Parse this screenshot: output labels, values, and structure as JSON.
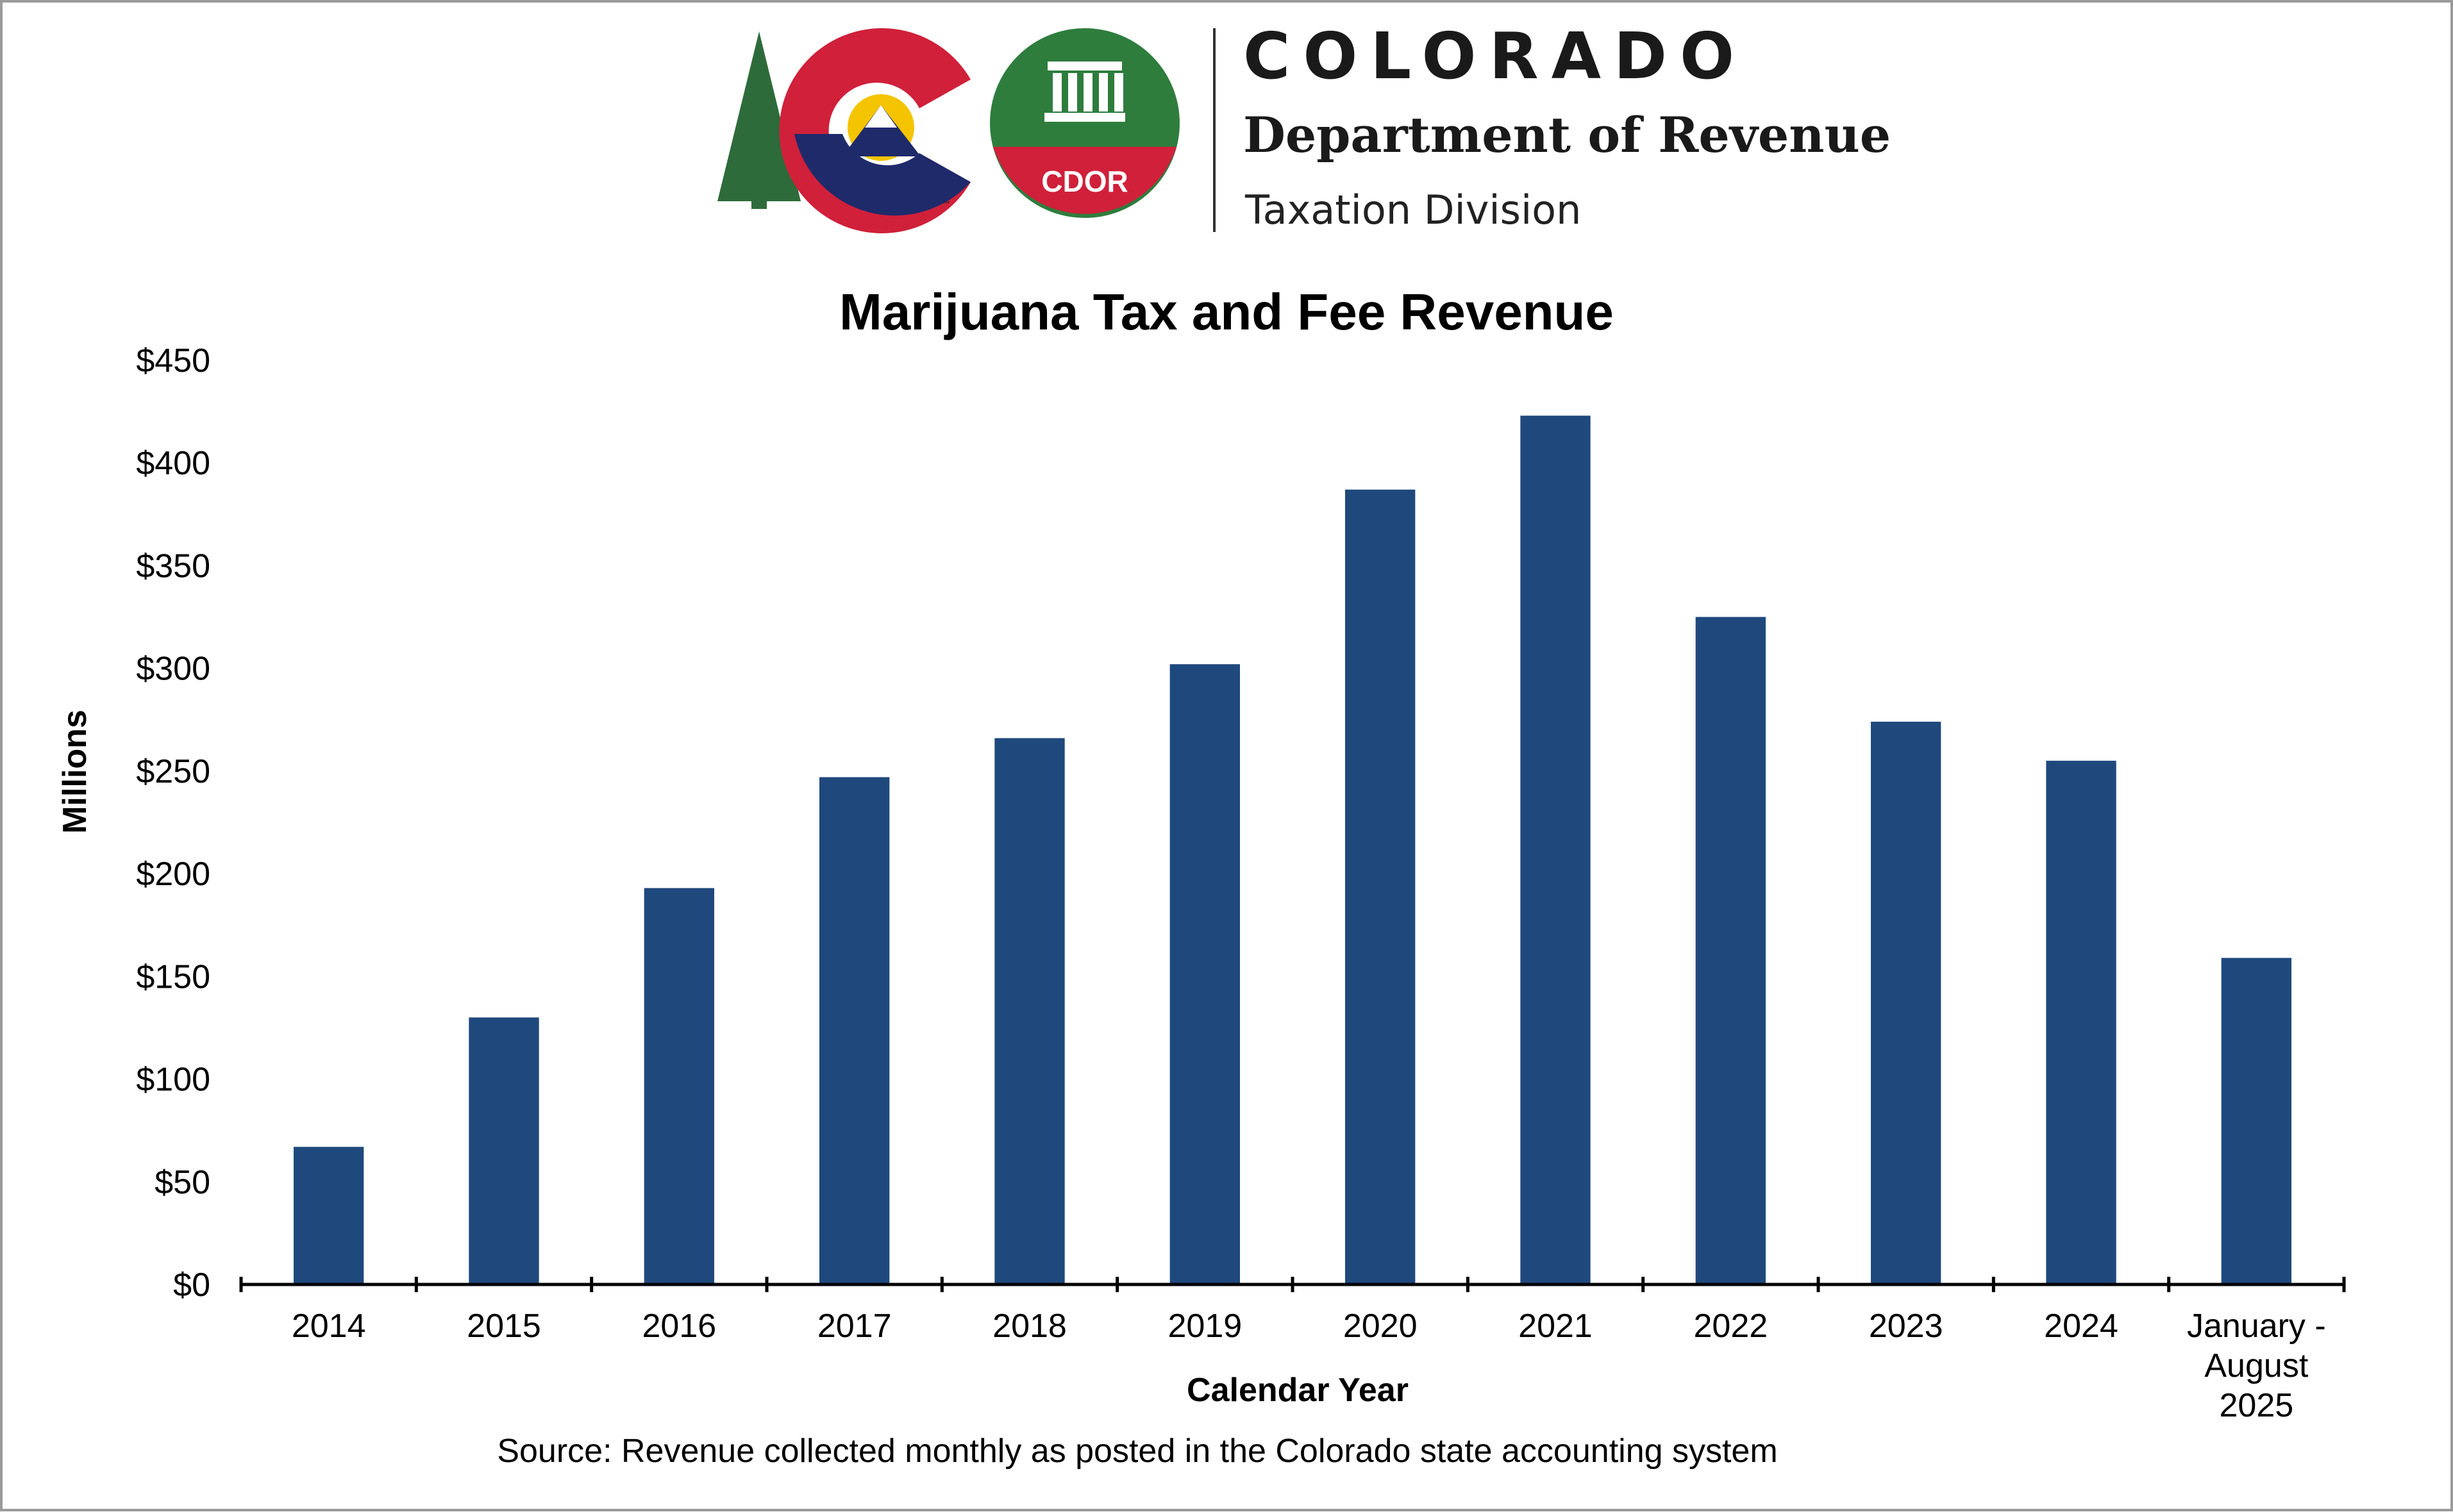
{
  "header": {
    "wordmark": "COLORADO",
    "department": "Department of Revenue",
    "division": "Taxation Division",
    "cdor_badge": "CDOR",
    "trademark": "™"
  },
  "colors": {
    "bar": "#1f497d",
    "axis": "#000000",
    "frame": "#9a9a9a",
    "logo_red": "#d0203a",
    "logo_blue": "#1f2a6b",
    "logo_gold": "#f5c400",
    "logo_green": "#2e6b3a",
    "badge_green": "#2e7d3d",
    "badge_red": "#d0203a"
  },
  "chart_data": {
    "type": "bar",
    "title": "Marijuana Tax and Fee Revenue",
    "xlabel": "Calendar Year",
    "ylabel": "Millions",
    "categories": [
      "2014",
      "2015",
      "2016",
      "2017",
      "2018",
      "2019",
      "2020",
      "2021",
      "2022",
      "2023",
      "2024",
      "January - August 2025"
    ],
    "category_lines": [
      [
        "2014"
      ],
      [
        "2015"
      ],
      [
        "2016"
      ],
      [
        "2017"
      ],
      [
        "2018"
      ],
      [
        "2019"
      ],
      [
        "2020"
      ],
      [
        "2021"
      ],
      [
        "2022"
      ],
      [
        "2023"
      ],
      [
        "2024"
      ],
      [
        "January -",
        "August",
        "2025"
      ]
    ],
    "values": [
      67,
      130,
      193,
      247,
      266,
      302,
      387,
      423,
      325,
      274,
      255,
      159
    ],
    "ylim": [
      0,
      450
    ],
    "yticks": [
      0,
      50,
      100,
      150,
      200,
      250,
      300,
      350,
      400,
      450
    ],
    "ytick_labels": [
      "$0",
      "$50",
      "$100",
      "$150",
      "$200",
      "$250",
      "$300",
      "$350",
      "$400",
      "$450"
    ],
    "grid": false,
    "legend": "none",
    "source": "Source: Revenue collected monthly as posted in the Colorado state accounting system"
  }
}
